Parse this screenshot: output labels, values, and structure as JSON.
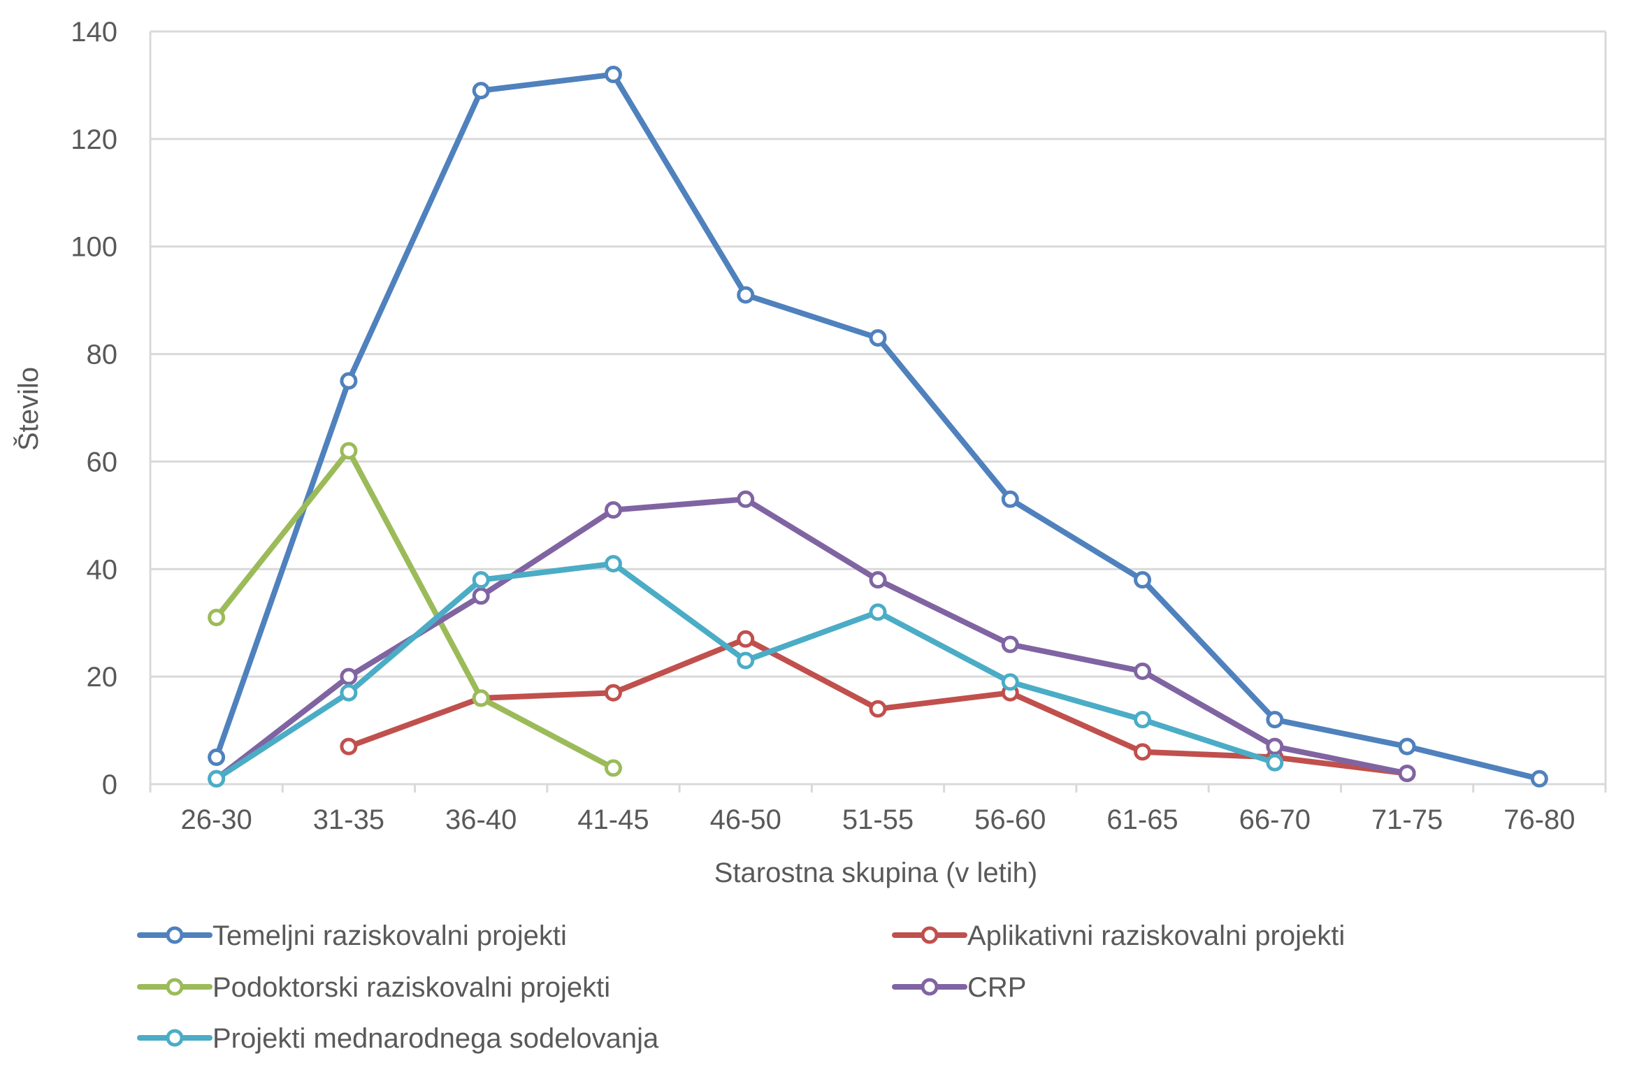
{
  "chart_data": {
    "type": "line",
    "title": "",
    "xlabel": "Starostna skupina  (v letih)",
    "ylabel": "Število",
    "ylim": [
      0,
      140
    ],
    "yticks": [
      0,
      20,
      40,
      60,
      80,
      100,
      120,
      140
    ],
    "grid": "horizontal",
    "legend_position": "bottom",
    "categories": [
      "26-30",
      "31-35",
      "36-40",
      "41-45",
      "46-50",
      "51-55",
      "56-60",
      "61-65",
      "66-70",
      "71-75",
      "76-80"
    ],
    "series": [
      {
        "name": "Temeljni raziskovalni projekti",
        "color": "#4F81BD",
        "values": [
          5,
          75,
          129,
          132,
          91,
          83,
          53,
          38,
          12,
          7,
          1
        ]
      },
      {
        "name": "Aplikativni raziskovalni projekti",
        "color": "#C0504D",
        "values": [
          null,
          7,
          16,
          17,
          27,
          14,
          17,
          6,
          5,
          2,
          null
        ]
      },
      {
        "name": "Podoktorski raziskovalni projekti",
        "color": "#9BBB59",
        "values": [
          31,
          62,
          16,
          3,
          null,
          null,
          null,
          null,
          null,
          null,
          null
        ]
      },
      {
        "name": "CRP",
        "color": "#8064A2",
        "values": [
          1,
          20,
          35,
          51,
          53,
          38,
          26,
          21,
          7,
          2,
          null
        ]
      },
      {
        "name": "Projekti mednarodnega sodelovanja",
        "color": "#4BACC6",
        "values": [
          1,
          17,
          38,
          41,
          23,
          32,
          19,
          12,
          4,
          null,
          null
        ]
      }
    ]
  }
}
